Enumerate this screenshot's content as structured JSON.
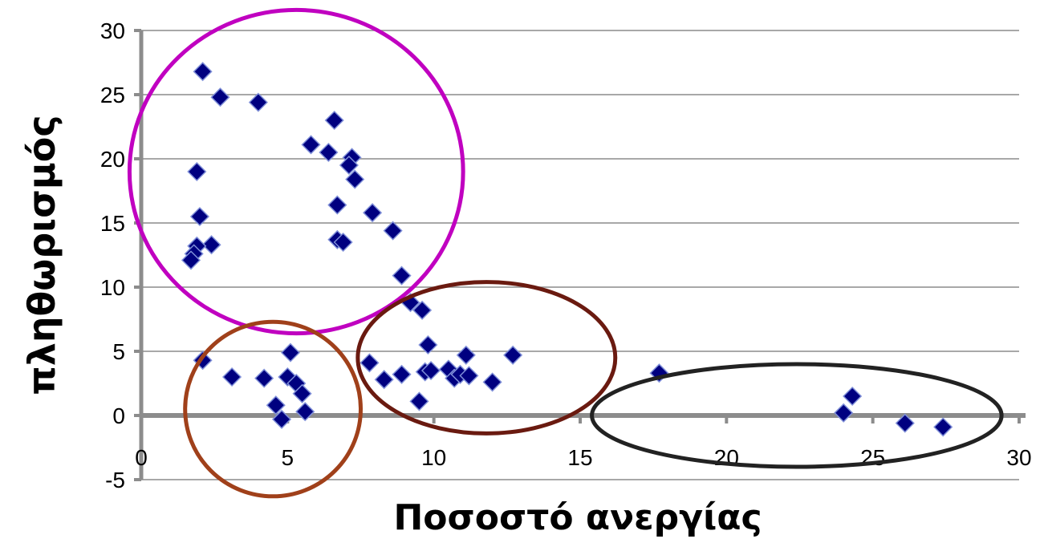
{
  "chart_data": {
    "type": "scatter",
    "title": "",
    "xlabel": "Ποσοστό ανεργίας",
    "ylabel": "πληθωρισμός",
    "xlim": [
      0,
      30
    ],
    "ylim": [
      -5,
      30
    ],
    "xticks": [
      0,
      5,
      10,
      15,
      20,
      25,
      30
    ],
    "yticks": [
      -5,
      0,
      5,
      10,
      15,
      20,
      25,
      30
    ],
    "grid": "horizontal",
    "legend": "none",
    "marker": "diamond",
    "marker_color": "#000080",
    "series": [
      {
        "points": [
          [
            2.1,
            26.8
          ],
          [
            2.7,
            24.8
          ],
          [
            4.0,
            24.4
          ],
          [
            6.6,
            23.0
          ],
          [
            5.8,
            21.1
          ],
          [
            6.4,
            20.5
          ],
          [
            7.2,
            20.1
          ],
          [
            7.1,
            19.5
          ],
          [
            7.3,
            18.4
          ],
          [
            1.9,
            19.0
          ],
          [
            6.7,
            16.4
          ],
          [
            7.9,
            15.8
          ],
          [
            2.0,
            15.5
          ],
          [
            8.6,
            14.4
          ],
          [
            6.7,
            13.7
          ],
          [
            6.9,
            13.5
          ],
          [
            2.4,
            13.3
          ],
          [
            1.9,
            13.2
          ],
          [
            1.8,
            12.6
          ],
          [
            1.7,
            12.1
          ],
          [
            8.9,
            10.9
          ],
          [
            9.2,
            8.8
          ],
          [
            9.6,
            8.2
          ],
          [
            9.8,
            5.5
          ],
          [
            2.1,
            4.3
          ],
          [
            5.1,
            4.9
          ],
          [
            5.0,
            3.0
          ],
          [
            5.3,
            2.5
          ],
          [
            3.1,
            3.0
          ],
          [
            4.2,
            2.9
          ],
          [
            5.5,
            1.7
          ],
          [
            4.6,
            0.8
          ],
          [
            5.6,
            0.3
          ],
          [
            4.8,
            -0.3
          ],
          [
            7.8,
            4.1
          ],
          [
            8.3,
            2.8
          ],
          [
            8.9,
            3.2
          ],
          [
            9.7,
            3.4
          ],
          [
            9.9,
            3.5
          ],
          [
            10.5,
            3.6
          ],
          [
            10.7,
            2.9
          ],
          [
            10.9,
            3.2
          ],
          [
            11.1,
            4.7
          ],
          [
            11.2,
            3.1
          ],
          [
            12.0,
            2.6
          ],
          [
            12.7,
            4.7
          ],
          [
            9.5,
            1.1
          ],
          [
            17.7,
            3.3
          ],
          [
            24.3,
            1.5
          ],
          [
            24.0,
            0.2
          ],
          [
            26.1,
            -0.6
          ],
          [
            27.4,
            -0.9
          ]
        ]
      }
    ],
    "annotations": [
      {
        "shape": "ellipse",
        "color": "#c000c0",
        "cx": 5.3,
        "cy": 19.0,
        "rx": 5.7,
        "ry": 12.6
      },
      {
        "shape": "ellipse",
        "color": "#a0401a",
        "cx": 4.5,
        "cy": 0.5,
        "rx": 3.0,
        "ry": 6.8
      },
      {
        "shape": "ellipse",
        "color": "#6a1a10",
        "cx": 11.8,
        "cy": 4.5,
        "rx": 4.4,
        "ry": 5.9
      },
      {
        "shape": "ellipse",
        "color": "#222222",
        "cx": 22.4,
        "cy": 0.0,
        "rx": 7.0,
        "ry": 4.0
      }
    ]
  }
}
